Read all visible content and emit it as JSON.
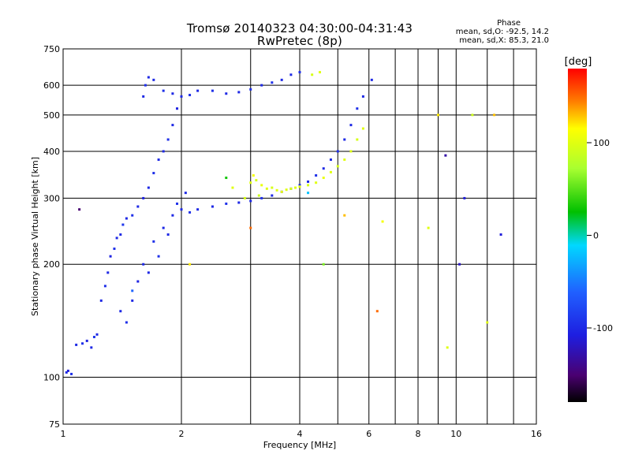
{
  "header": {
    "title_line1": "Tromsø 20140323 04:30:00-04:31:43",
    "title_line2": "RwPretec (8p)",
    "stats_heading": "Phase",
    "stats_o": "mean, sd,O: -92.5, 14.2",
    "stats_x": "mean, sd,X: 85.3, 21.0"
  },
  "colorbar": {
    "unit": "[deg]",
    "range": [
      -180,
      180
    ],
    "ticks": [
      {
        "value": 100,
        "label": "100"
      },
      {
        "value": 0,
        "label": "0"
      },
      {
        "value": -100,
        "label": "-100"
      }
    ]
  },
  "chart_data": {
    "type": "scatter",
    "title": "Tromsø 20140323 04:30:00-04:31:43",
    "subtitle": "RwPretec (8p)",
    "xlabel": "Frequency [MHz]",
    "ylabel": "Stationary phase Virtual Height [km]",
    "xscale": "log",
    "yscale": "log",
    "xlim": [
      1,
      16
    ],
    "ylim": [
      75,
      750
    ],
    "grid": true,
    "xticks": [
      {
        "value": 1,
        "label": "1"
      },
      {
        "value": 2,
        "label": "2"
      },
      {
        "value": 4,
        "label": "4"
      },
      {
        "value": 6,
        "label": "6"
      },
      {
        "value": 8,
        "label": "8"
      },
      {
        "value": 10,
        "label": "10"
      },
      {
        "value": 16,
        "label": "16"
      }
    ],
    "xgrid_extra": [
      3,
      5,
      7,
      9,
      12,
      14
    ],
    "yticks": [
      {
        "value": 75,
        "label": "75"
      },
      {
        "value": 100,
        "label": "100"
      },
      {
        "value": 200,
        "label": "200"
      },
      {
        "value": 300,
        "label": "300"
      },
      {
        "value": 400,
        "label": "400"
      },
      {
        "value": 500,
        "label": "500"
      },
      {
        "value": 600,
        "label": "600"
      },
      {
        "value": 750,
        "label": "750"
      }
    ],
    "colorscale": "rainbow",
    "color_variable": "phase [deg]",
    "color_range": [
      -180,
      180
    ],
    "series": [
      {
        "name": "O",
        "phase_mean": -92.5,
        "phase_sd": 14.2,
        "points": [
          [
            1.02,
            103,
            -100
          ],
          [
            1.05,
            102,
            -95
          ],
          [
            1.03,
            104,
            -110
          ],
          [
            1.08,
            122,
            -100
          ],
          [
            1.12,
            123,
            -95
          ],
          [
            1.15,
            125,
            -105
          ],
          [
            1.18,
            120,
            -100
          ],
          [
            1.2,
            128,
            -90
          ],
          [
            1.22,
            130,
            -100
          ],
          [
            1.25,
            160,
            -100
          ],
          [
            1.28,
            175,
            -95
          ],
          [
            1.3,
            190,
            -100
          ],
          [
            1.32,
            210,
            -105
          ],
          [
            1.35,
            220,
            -95
          ],
          [
            1.37,
            235,
            -100
          ],
          [
            1.4,
            240,
            -100
          ],
          [
            1.42,
            255,
            -90
          ],
          [
            1.45,
            265,
            -100
          ],
          [
            1.5,
            270,
            -95
          ],
          [
            1.55,
            285,
            -100
          ],
          [
            1.6,
            300,
            -105
          ],
          [
            1.65,
            320,
            -100
          ],
          [
            1.7,
            350,
            -95
          ],
          [
            1.75,
            380,
            -100
          ],
          [
            1.8,
            400,
            -100
          ],
          [
            1.85,
            430,
            -95
          ],
          [
            1.9,
            470,
            -100
          ],
          [
            1.95,
            520,
            -105
          ],
          [
            1.6,
            560,
            -100
          ],
          [
            1.62,
            600,
            -95
          ],
          [
            1.65,
            630,
            -100
          ],
          [
            1.7,
            620,
            -100
          ],
          [
            1.8,
            580,
            -95
          ],
          [
            1.9,
            570,
            -100
          ],
          [
            2.0,
            560,
            -100
          ],
          [
            2.1,
            565,
            -95
          ],
          [
            2.2,
            580,
            -100
          ],
          [
            2.4,
            580,
            -95
          ],
          [
            2.6,
            570,
            -100
          ],
          [
            2.8,
            575,
            -100
          ],
          [
            3.0,
            585,
            -95
          ],
          [
            3.2,
            600,
            -100
          ],
          [
            3.4,
            610,
            -95
          ],
          [
            3.6,
            620,
            -100
          ],
          [
            3.8,
            640,
            -100
          ],
          [
            4.0,
            650,
            -95
          ],
          [
            2.0,
            280,
            -100
          ],
          [
            2.1,
            275,
            -95
          ],
          [
            2.2,
            280,
            -100
          ],
          [
            2.4,
            285,
            -100
          ],
          [
            2.6,
            290,
            -95
          ],
          [
            2.8,
            292,
            -100
          ],
          [
            3.0,
            295,
            -100
          ],
          [
            3.2,
            300,
            -95
          ],
          [
            3.4,
            305,
            -100
          ],
          [
            3.6,
            312,
            -100
          ],
          [
            3.8,
            318,
            -95
          ],
          [
            4.0,
            325,
            -100
          ],
          [
            4.2,
            332,
            -100
          ],
          [
            4.4,
            345,
            -95
          ],
          [
            4.6,
            360,
            -100
          ],
          [
            4.8,
            380,
            -100
          ],
          [
            5.0,
            400,
            -95
          ],
          [
            5.2,
            430,
            -100
          ],
          [
            5.4,
            470,
            -100
          ],
          [
            5.6,
            520,
            -95
          ],
          [
            5.8,
            560,
            -100
          ],
          [
            6.1,
            620,
            -100
          ],
          [
            1.4,
            150,
            -100
          ],
          [
            1.45,
            140,
            -95
          ],
          [
            1.5,
            160,
            -100
          ],
          [
            1.55,
            180,
            -105
          ],
          [
            1.6,
            200,
            -100
          ],
          [
            1.7,
            230,
            -95
          ],
          [
            1.8,
            250,
            -100
          ],
          [
            1.9,
            270,
            -100
          ],
          [
            1.75,
            210,
            -95
          ],
          [
            1.65,
            190,
            -100
          ],
          [
            1.85,
            240,
            -100
          ],
          [
            1.95,
            290,
            -95
          ],
          [
            2.05,
            310,
            -100
          ]
        ]
      },
      {
        "name": "X",
        "phase_mean": 85.3,
        "phase_sd": 21.0,
        "points": [
          [
            3.0,
            330,
            100
          ],
          [
            3.1,
            335,
            95
          ],
          [
            3.2,
            325,
            105
          ],
          [
            3.3,
            318,
            100
          ],
          [
            3.4,
            320,
            95
          ],
          [
            3.5,
            315,
            100
          ],
          [
            3.6,
            312,
            105
          ],
          [
            3.7,
            316,
            100
          ],
          [
            3.8,
            318,
            95
          ],
          [
            3.9,
            320,
            100
          ],
          [
            4.0,
            322,
            100
          ],
          [
            4.2,
            325,
            95
          ],
          [
            4.4,
            330,
            100
          ],
          [
            4.6,
            340,
            105
          ],
          [
            4.8,
            352,
            100
          ],
          [
            5.0,
            365,
            95
          ],
          [
            5.2,
            380,
            100
          ],
          [
            5.4,
            400,
            100
          ],
          [
            5.6,
            430,
            95
          ],
          [
            5.8,
            460,
            100
          ],
          [
            3.05,
            345,
            110
          ],
          [
            3.15,
            305,
            90
          ],
          [
            4.3,
            640,
            95
          ],
          [
            4.5,
            650,
            100
          ],
          [
            2.7,
            320,
            100
          ],
          [
            2.9,
            300,
            95
          ]
        ]
      },
      {
        "name": "",
        "points": [
          [
            1.1,
            280,
            -150
          ],
          [
            1.5,
            170,
            -60
          ],
          [
            2.1,
            200,
            120
          ],
          [
            2.6,
            340,
            30
          ],
          [
            3.0,
            250,
            150
          ],
          [
            4.2,
            310,
            -20
          ],
          [
            4.6,
            200,
            60
          ],
          [
            5.2,
            270,
            130
          ],
          [
            6.3,
            150,
            150
          ],
          [
            6.5,
            260,
            110
          ],
          [
            8.5,
            250,
            100
          ],
          [
            9.0,
            500,
            120
          ],
          [
            9.4,
            390,
            -130
          ],
          [
            10.5,
            300,
            -110
          ],
          [
            11.0,
            500,
            90
          ],
          [
            12.5,
            500,
            130
          ],
          [
            13.0,
            240,
            -110
          ],
          [
            12.0,
            140,
            100
          ],
          [
            10.2,
            200,
            -120
          ],
          [
            9.5,
            120,
            100
          ]
        ]
      }
    ]
  }
}
